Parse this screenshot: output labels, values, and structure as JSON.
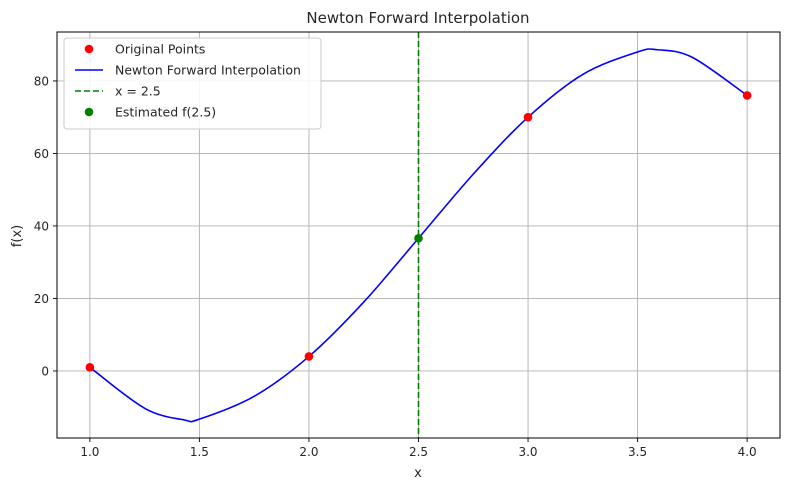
{
  "chart_data": {
    "type": "line",
    "title": "Newton Forward Interpolation",
    "xlabel": "x",
    "ylabel": "f(x)",
    "xlim": [
      0.85,
      4.15
    ],
    "ylim": [
      -18.5,
      93.5
    ],
    "xticks": [
      1.0,
      1.5,
      2.0,
      2.5,
      3.0,
      3.5,
      4.0
    ],
    "xtick_labels": [
      "1.0",
      "1.5",
      "2.0",
      "2.5",
      "3.0",
      "3.5",
      "4.0"
    ],
    "yticks": [
      0,
      20,
      40,
      60,
      80
    ],
    "ytick_labels": [
      "0",
      "20",
      "40",
      "60",
      "80"
    ],
    "grid": true,
    "legend_position": "top-left",
    "series": [
      {
        "name": "Original Points",
        "kind": "scatter",
        "color": "#ff0000",
        "x": [
          1,
          2,
          3,
          4
        ],
        "y": [
          1,
          4,
          70,
          76
        ]
      },
      {
        "name": "Newton Forward Interpolation",
        "kind": "line",
        "color": "#0000ff",
        "x": [
          1.0,
          1.25,
          1.43,
          1.5,
          1.75,
          2.0,
          2.25,
          2.5,
          2.75,
          3.0,
          3.25,
          3.5,
          3.59,
          3.75,
          4.0
        ],
        "y": [
          1.0,
          -10.3,
          -13.5,
          -13.3,
          -7.0,
          4.0,
          19.0,
          36.6,
          54.3,
          70.0,
          81.8,
          88.0,
          88.6,
          86.5,
          76.0
        ]
      },
      {
        "name": "x = 2.5",
        "kind": "vline",
        "color": "#008000",
        "x": 2.5
      },
      {
        "name": "Estimated f(2.5)",
        "kind": "scatter",
        "color": "#008000",
        "x": [
          2.5
        ],
        "y": [
          36.6
        ]
      }
    ]
  }
}
